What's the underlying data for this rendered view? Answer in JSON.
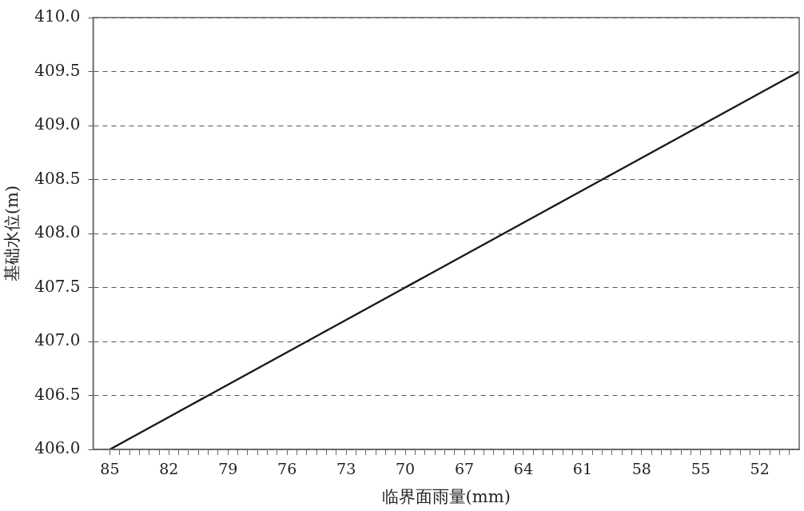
{
  "chart_data": {
    "type": "line",
    "xlabel": "临界面雨量(mm)",
    "ylabel": "基础水位(m)",
    "x": [
      85,
      84,
      83,
      82,
      81,
      80,
      79,
      78,
      77,
      76,
      75,
      74,
      73,
      72,
      71,
      70,
      69,
      68,
      67,
      66,
      65,
      64,
      63,
      62,
      61,
      60,
      59,
      58,
      57,
      56,
      55,
      54,
      53,
      52,
      51,
      50
    ],
    "series": [
      {
        "color": "#1a1a1a",
        "values": [
          406.0,
          406.1,
          406.2,
          406.3,
          406.4,
          406.5,
          406.6,
          406.7,
          406.8,
          406.9,
          407.0,
          407.1,
          407.2,
          407.3,
          407.4,
          407.5,
          407.6,
          407.7,
          407.8,
          407.9,
          408.0,
          408.1,
          408.2,
          408.3,
          408.4,
          408.5,
          408.6,
          408.7,
          408.8,
          408.9,
          409.0,
          409.1,
          409.2,
          409.3,
          409.4,
          409.5
        ]
      }
    ],
    "xlim": [
      85.85,
      50
    ],
    "xticks": [
      85,
      {
        "value": 84.5,
        "label": null
      },
      {
        "value": 84,
        "label": null
      },
      {
        "value": 83.5,
        "label": null
      },
      {
        "value": 83,
        "label": null
      },
      {
        "value": 82.5,
        "label": null
      },
      82,
      {
        "value": 81.5,
        "label": null
      },
      {
        "value": 81,
        "label": null
      },
      {
        "value": 80.5,
        "label": null
      },
      {
        "value": 80,
        "label": null
      },
      {
        "value": 79.5,
        "label": null
      },
      79,
      {
        "value": 78.5,
        "label": null
      },
      {
        "value": 78,
        "label": null
      },
      {
        "value": 77.5,
        "label": null
      },
      {
        "value": 77,
        "label": null
      },
      {
        "value": 76.5,
        "label": null
      },
      76,
      {
        "value": 75.5,
        "label": null
      },
      {
        "value": 75,
        "label": null
      },
      {
        "value": 74.5,
        "label": null
      },
      {
        "value": 74,
        "label": null
      },
      {
        "value": 73.5,
        "label": null
      },
      73,
      {
        "value": 72.5,
        "label": null
      },
      {
        "value": 72,
        "label": null
      },
      {
        "value": 71.5,
        "label": null
      },
      {
        "value": 71,
        "label": null
      },
      {
        "value": 70.5,
        "label": null
      },
      70,
      {
        "value": 69.5,
        "label": null
      },
      {
        "value": 69,
        "label": null
      },
      {
        "value": 68.5,
        "label": null
      },
      {
        "value": 68,
        "label": null
      },
      {
        "value": 67.5,
        "label": null
      },
      67,
      {
        "value": 66.5,
        "label": null
      },
      {
        "value": 66,
        "label": null
      },
      {
        "value": 65.5,
        "label": null
      },
      {
        "value": 65,
        "label": null
      },
      {
        "value": 64.5,
        "label": null
      },
      64,
      {
        "value": 63.5,
        "label": null
      },
      {
        "value": 63,
        "label": null
      },
      {
        "value": 62.5,
        "label": null
      },
      {
        "value": 62,
        "label": null
      },
      {
        "value": 61.5,
        "label": null
      },
      61,
      {
        "value": 60.5,
        "label": null
      },
      {
        "value": 60,
        "label": null
      },
      {
        "value": 59.5,
        "label": null
      },
      {
        "value": 59,
        "label": null
      },
      {
        "value": 58.5,
        "label": null
      },
      58,
      {
        "value": 57.5,
        "label": null
      },
      {
        "value": 57,
        "label": null
      },
      {
        "value": 56.5,
        "label": null
      },
      {
        "value": 56,
        "label": null
      },
      {
        "value": 55.5,
        "label": null
      },
      55,
      {
        "value": 54.5,
        "label": null
      },
      {
        "value": 54,
        "label": null
      },
      {
        "value": 53.5,
        "label": null
      },
      {
        "value": 53,
        "label": null
      },
      {
        "value": 52.5,
        "label": null
      },
      52,
      {
        "value": 51.5,
        "label": null
      },
      {
        "value": 51,
        "label": null
      },
      {
        "value": 50.5,
        "label": null
      }
    ],
    "ylim": [
      406,
      410
    ],
    "yticks": [
      {
        "value": 406,
        "label": "406.0"
      },
      {
        "value": 406.5,
        "label": "406.5"
      },
      {
        "value": 407,
        "label": "407.0"
      },
      {
        "value": 407.5,
        "label": "407.5"
      },
      {
        "value": 408,
        "label": "408.0"
      },
      {
        "value": 408.5,
        "label": "408.5"
      },
      {
        "value": 409,
        "label": "409.0"
      },
      {
        "value": 409.5,
        "label": "409.5"
      },
      {
        "value": 410,
        "label": "410.0"
      }
    ],
    "grid": "y",
    "legend": false,
    "marker": "none",
    "line_style": "solid"
  }
}
